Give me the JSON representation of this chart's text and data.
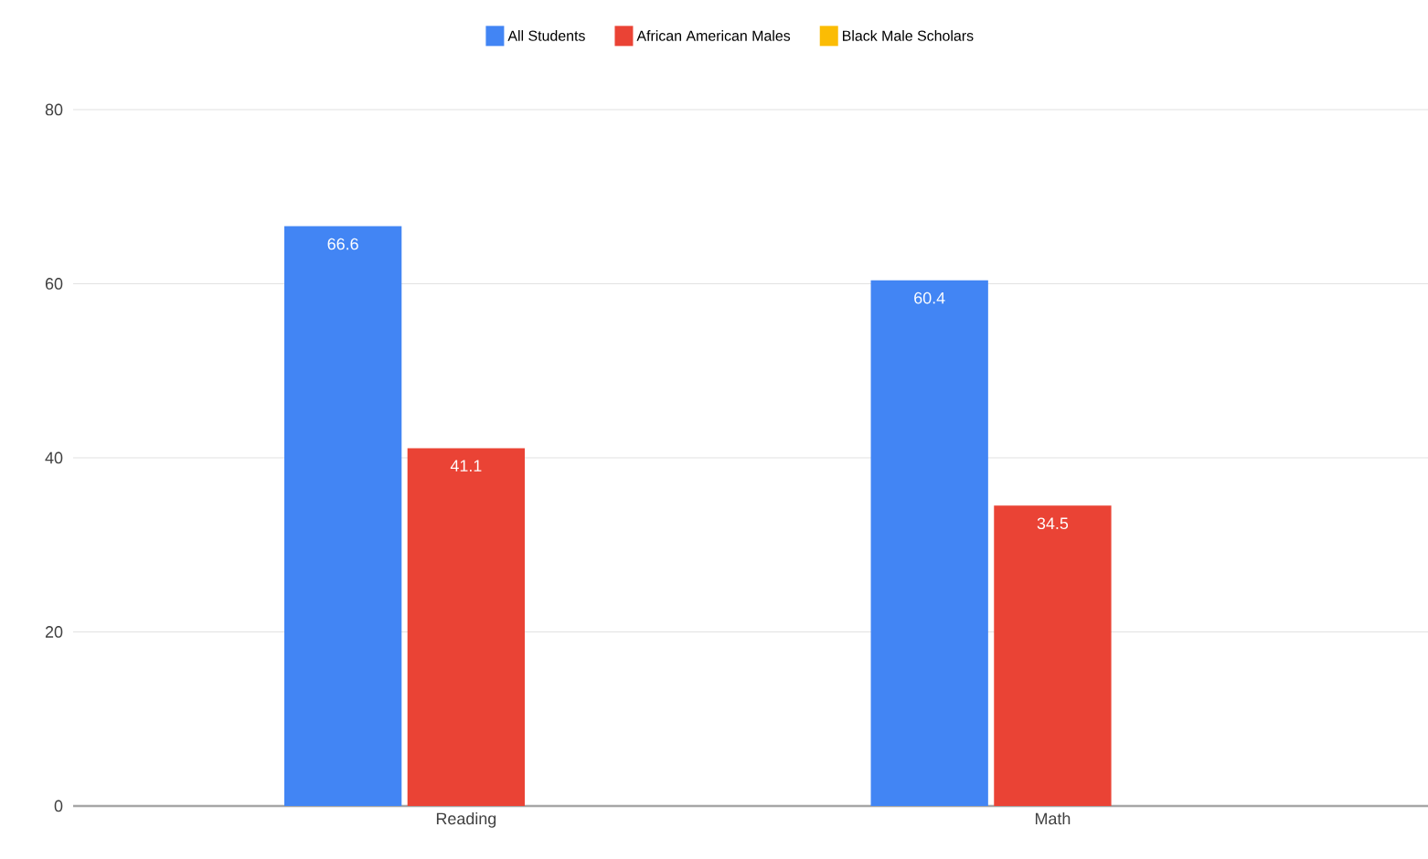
{
  "chart_data": {
    "type": "bar",
    "categories": [
      "Reading",
      "Math"
    ],
    "series": [
      {
        "name": "All Students",
        "color": "#4285f4",
        "values": [
          66.6,
          60.4
        ]
      },
      {
        "name": "African American Males",
        "color": "#ea4335",
        "values": [
          41.1,
          34.5
        ]
      },
      {
        "name": "Black Male Scholars",
        "color": "#fbbc04",
        "values": [
          null,
          null
        ]
      }
    ],
    "ylim": [
      0,
      80
    ],
    "yticks": [
      0,
      20,
      40,
      60,
      80
    ],
    "grid": "y",
    "legend": "top",
    "data_labels": true
  }
}
